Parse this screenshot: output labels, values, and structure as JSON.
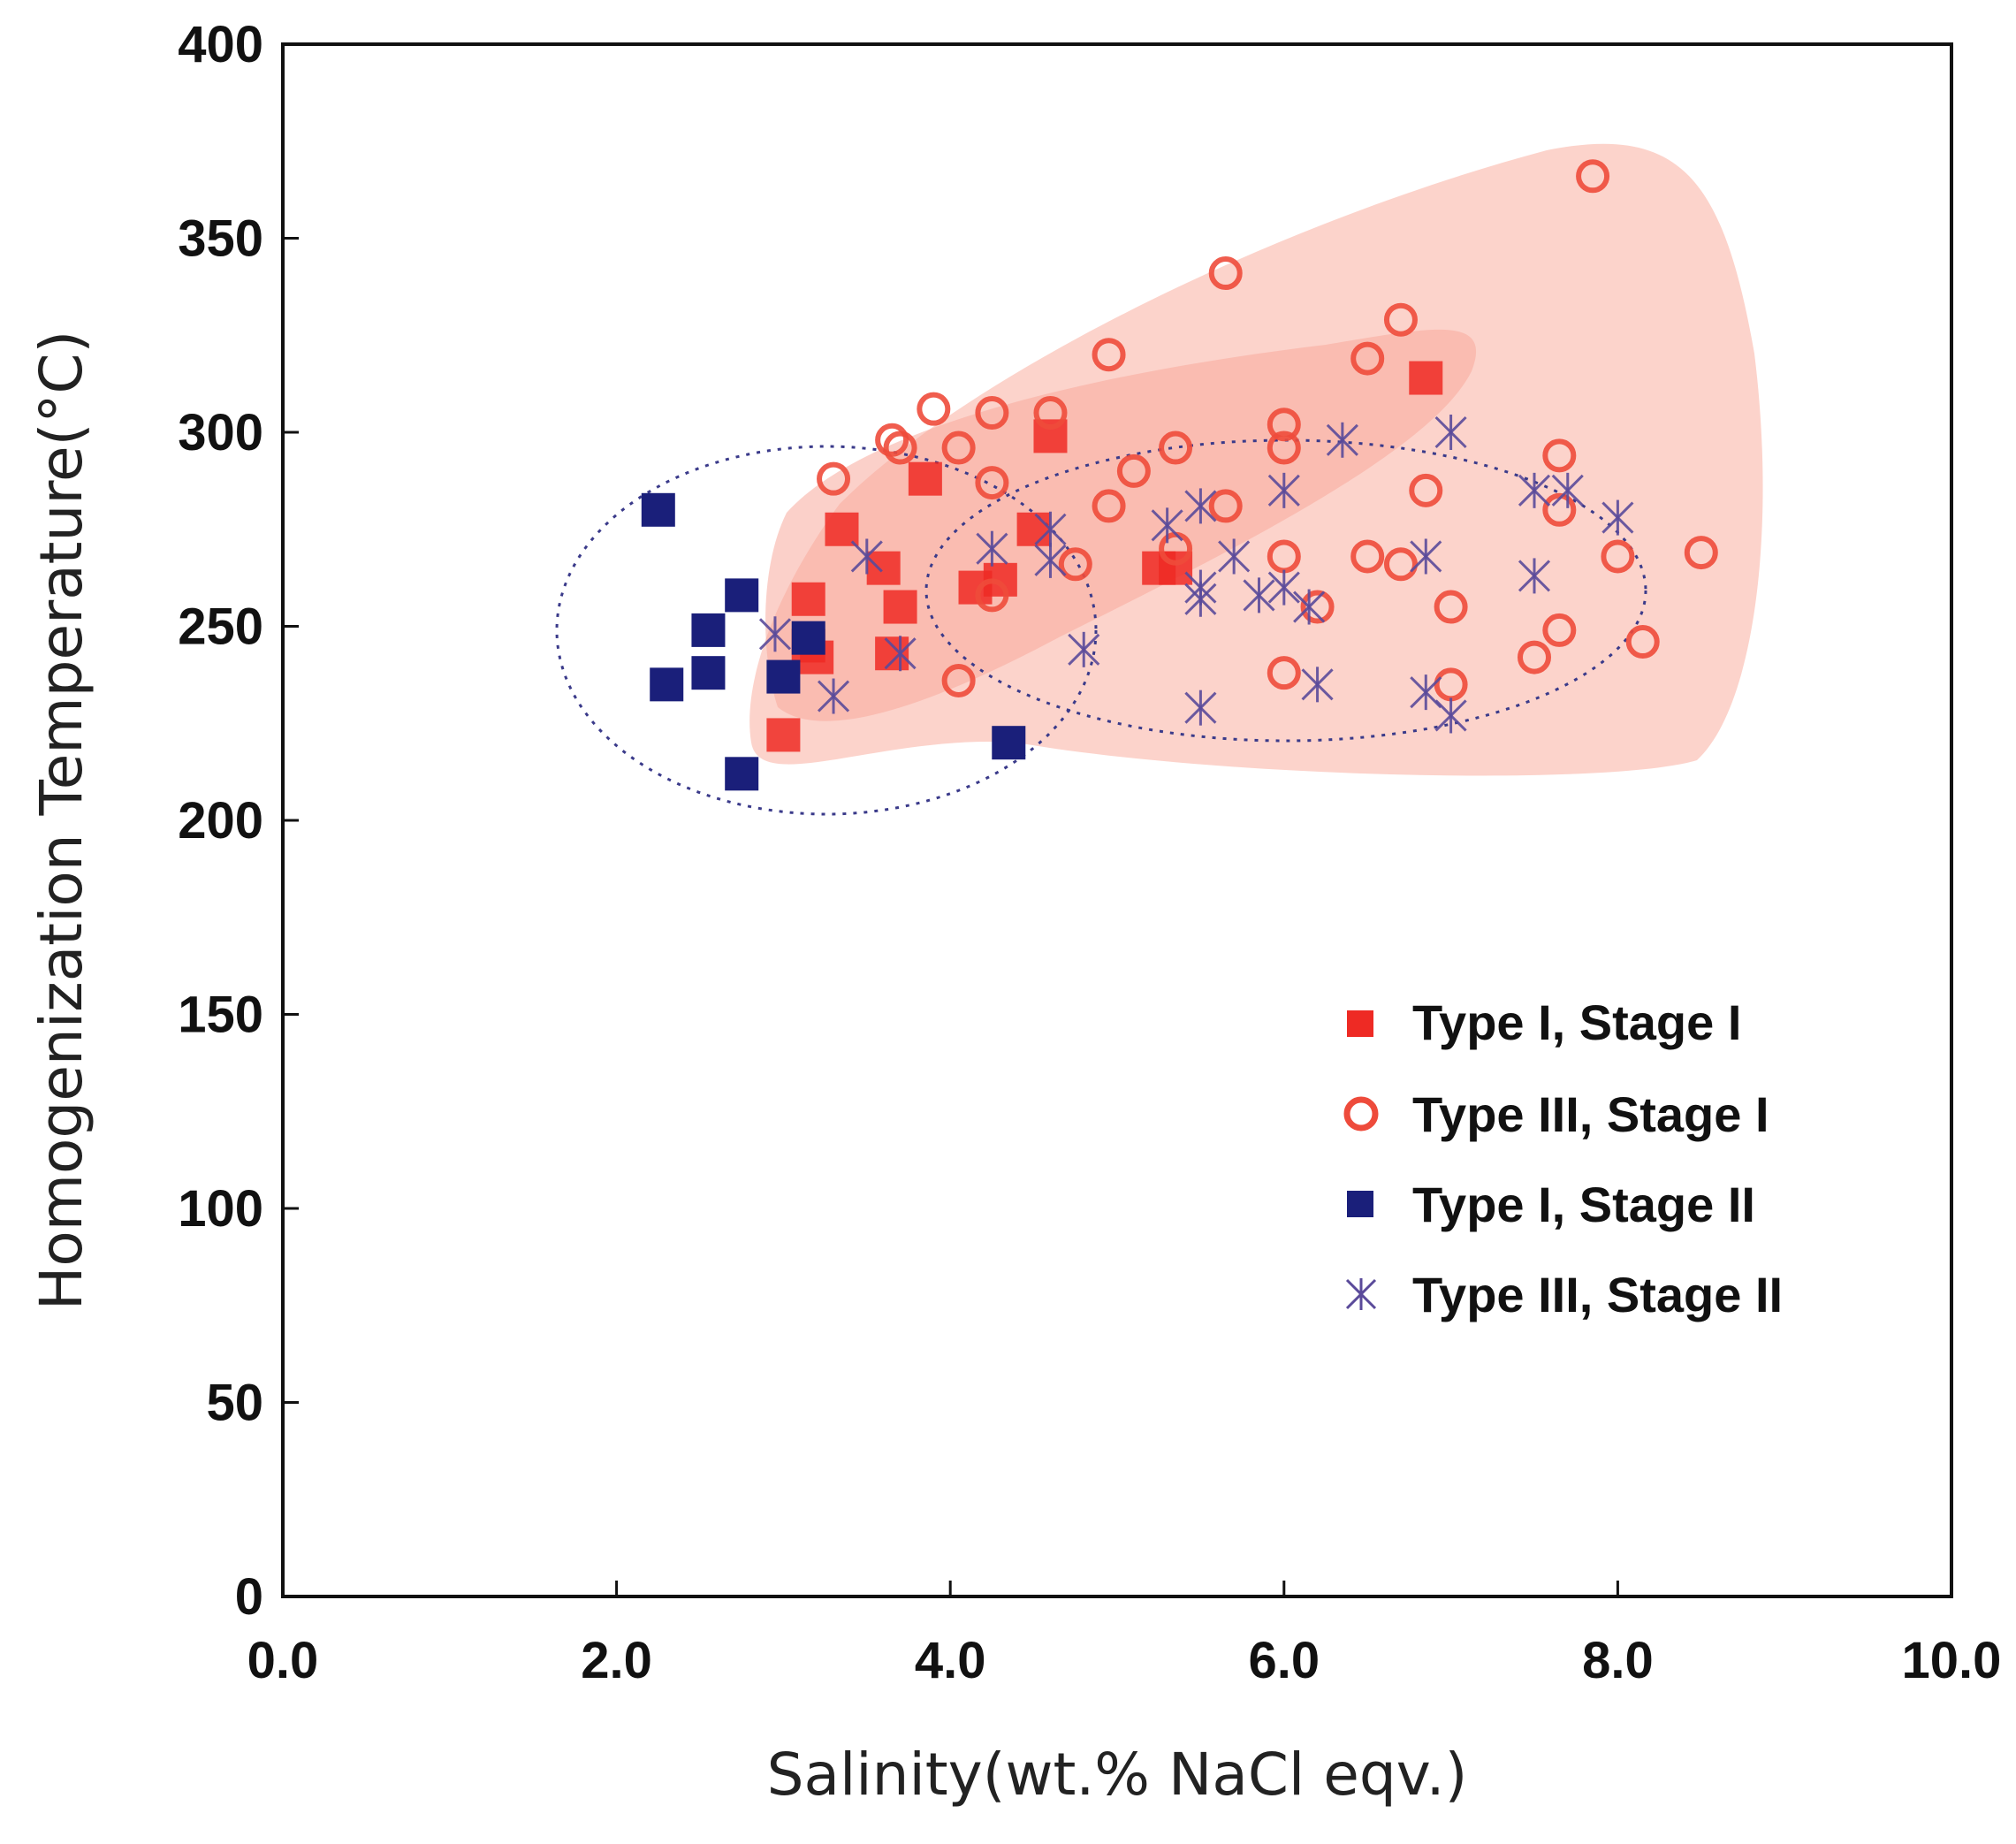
{
  "chart_data": {
    "type": "scatter",
    "title": "",
    "xlabel": "Salinity(wt.% NaCl eqv.)",
    "ylabel": "Homogenization Temperature(°C)",
    "xlim": [
      0,
      10
    ],
    "ylim": [
      0,
      400
    ],
    "x_ticks": [
      "0.0",
      "2.0",
      "4.0",
      "6.0",
      "8.0",
      "10.0"
    ],
    "y_ticks": [
      "0",
      "50",
      "100",
      "150",
      "200",
      "250",
      "300",
      "350",
      "400"
    ],
    "grid": false,
    "legend_position": "right-middle",
    "colors": {
      "type1_stage1": "#ee2a24",
      "type3_stage1": "#ee4b3b",
      "type1_stage2": "#1a1f7a",
      "type3_stage2": "#5a4a9a",
      "field_outer": "#fcd0c8",
      "field_inner": "#f9a89a",
      "dotted_outline": "#3a3a8a"
    },
    "series": [
      {
        "name": "Type I, Stage I",
        "marker": "filled-square",
        "points": [
          [
            3.0,
            222
          ],
          [
            3.15,
            245
          ],
          [
            3.2,
            242
          ],
          [
            3.15,
            257
          ],
          [
            3.35,
            275
          ],
          [
            3.6,
            265
          ],
          [
            3.65,
            243
          ],
          [
            3.85,
            288
          ],
          [
            3.7,
            255
          ],
          [
            4.15,
            260
          ],
          [
            4.3,
            262
          ],
          [
            4.5,
            275
          ],
          [
            4.6,
            299
          ],
          [
            5.25,
            265
          ],
          [
            5.35,
            265
          ],
          [
            6.85,
            314
          ]
        ]
      },
      {
        "name": "Type III, Stage I",
        "marker": "open-circle",
        "points": [
          [
            3.3,
            288
          ],
          [
            3.65,
            298
          ],
          [
            3.7,
            296
          ],
          [
            3.9,
            306
          ],
          [
            4.05,
            296
          ],
          [
            4.05,
            236
          ],
          [
            4.25,
            287
          ],
          [
            4.25,
            305
          ],
          [
            4.25,
            258
          ],
          [
            4.6,
            305
          ],
          [
            4.75,
            266
          ],
          [
            4.95,
            320
          ],
          [
            4.95,
            281
          ],
          [
            5.1,
            290
          ],
          [
            5.35,
            296
          ],
          [
            5.35,
            270
          ],
          [
            5.65,
            341
          ],
          [
            5.65,
            281
          ],
          [
            6.0,
            302
          ],
          [
            6.0,
            296
          ],
          [
            6.0,
            268
          ],
          [
            6.0,
            238
          ],
          [
            6.2,
            255
          ],
          [
            6.5,
            319
          ],
          [
            6.5,
            268
          ],
          [
            6.7,
            329
          ],
          [
            6.7,
            266
          ],
          [
            6.85,
            285
          ],
          [
            7.0,
            255
          ],
          [
            7.0,
            235
          ],
          [
            7.5,
            242
          ],
          [
            7.65,
            294
          ],
          [
            7.65,
            280
          ],
          [
            7.65,
            249
          ],
          [
            7.85,
            366
          ],
          [
            8.0,
            268
          ],
          [
            8.15,
            246
          ],
          [
            8.5,
            269
          ]
        ]
      },
      {
        "name": "Type I, Stage II",
        "marker": "filled-square",
        "points": [
          [
            2.25,
            280
          ],
          [
            2.3,
            235
          ],
          [
            2.55,
            249
          ],
          [
            2.55,
            238
          ],
          [
            2.75,
            258
          ],
          [
            2.75,
            212
          ],
          [
            3.0,
            237
          ],
          [
            3.15,
            247
          ],
          [
            4.35,
            220
          ]
        ]
      },
      {
        "name": "Type III, Stage II",
        "marker": "asterisk",
        "points": [
          [
            2.95,
            248
          ],
          [
            3.3,
            232
          ],
          [
            3.5,
            268
          ],
          [
            3.7,
            243
          ],
          [
            4.25,
            270
          ],
          [
            4.6,
            275
          ],
          [
            4.6,
            267
          ],
          [
            4.8,
            244
          ],
          [
            5.3,
            276
          ],
          [
            5.5,
            281
          ],
          [
            5.5,
            260
          ],
          [
            5.5,
            257
          ],
          [
            5.5,
            229
          ],
          [
            5.7,
            268
          ],
          [
            5.85,
            258
          ],
          [
            6.0,
            285
          ],
          [
            6.0,
            260
          ],
          [
            6.15,
            255
          ],
          [
            6.2,
            235
          ],
          [
            6.35,
            298
          ],
          [
            6.85,
            268
          ],
          [
            6.85,
            233
          ],
          [
            7.0,
            300
          ],
          [
            7.0,
            227
          ],
          [
            7.5,
            285
          ],
          [
            7.5,
            263
          ],
          [
            7.7,
            285
          ],
          [
            8.0,
            278
          ]
        ]
      }
    ]
  }
}
